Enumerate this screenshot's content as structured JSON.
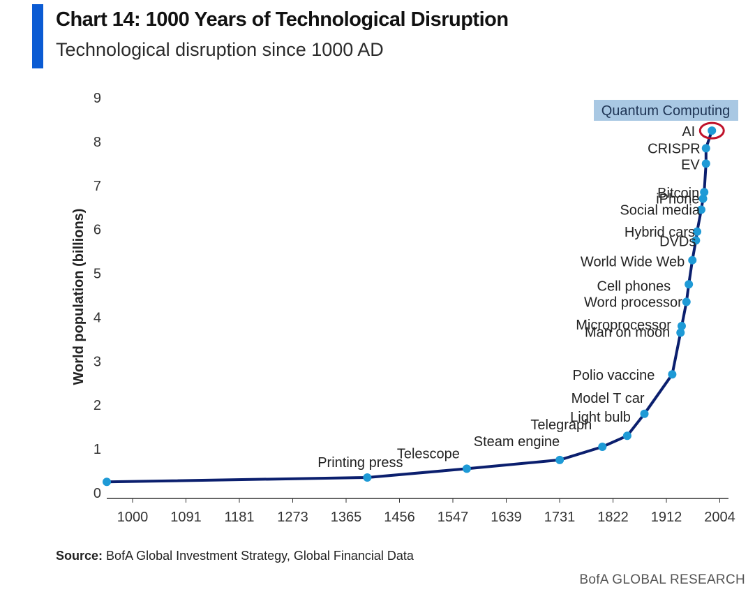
{
  "header": {
    "title": "Chart 14: 1000 Years of Technological Disruption",
    "subtitle": "Technological disruption since 1000 AD"
  },
  "footer": {
    "source_label": "Source:",
    "source_text": "BofA Global Investment Strategy, Global Financial Data",
    "brand": "BofA GLOBAL RESEARCH"
  },
  "colors": {
    "accent_bar": "#0b5bd3",
    "line": "#0b1f6e",
    "point": "#1e9ad6",
    "highlight_box": "#a9c8e3",
    "highlight_ring": "#c0122a"
  },
  "chart_data": {
    "type": "line",
    "title": "Chart 14: 1000 Years of Technological Disruption",
    "subtitle": "Technological disruption since 1000 AD",
    "xlabel": "",
    "ylabel": "World population (billions)",
    "xlim": [
      1000,
      2050
    ],
    "ylim": [
      0,
      9
    ],
    "x_ticks": [
      "1000",
      "1091",
      "1181",
      "1273",
      "1365",
      "1456",
      "1547",
      "1639",
      "1731",
      "1822",
      "1912",
      "2004"
    ],
    "y_ticks": [
      "0",
      "1",
      "2",
      "3",
      "4",
      "5",
      "6",
      "7",
      "8",
      "9"
    ],
    "grid": false,
    "legend": "none",
    "series": [
      {
        "points": [
          {
            "x": 1000,
            "y": 0.25,
            "label": ""
          },
          {
            "x": 1440,
            "y": 0.35,
            "label": "Printing press"
          },
          {
            "x": 1608,
            "y": 0.55,
            "label": "Telescope"
          },
          {
            "x": 1765,
            "y": 0.75,
            "label": "Steam engine"
          },
          {
            "x": 1837,
            "y": 1.05,
            "label": "Telegraph"
          },
          {
            "x": 1879,
            "y": 1.3,
            "label": "Light bulb"
          },
          {
            "x": 1908,
            "y": 1.8,
            "label": "Model T car"
          },
          {
            "x": 1955,
            "y": 2.7,
            "label": "Polio vaccine"
          },
          {
            "x": 1969,
            "y": 3.65,
            "label": "Man on moon"
          },
          {
            "x": 1971,
            "y": 3.8,
            "label": "Microprocessor"
          },
          {
            "x": 1979,
            "y": 4.35,
            "label": "Word processor"
          },
          {
            "x": 1983,
            "y": 4.75,
            "label": "Cell phones"
          },
          {
            "x": 1989,
            "y": 5.3,
            "label": "World Wide Web"
          },
          {
            "x": 1995,
            "y": 5.75,
            "label": "DVDs"
          },
          {
            "x": 1997,
            "y": 5.95,
            "label": "Hybrid cars"
          },
          {
            "x": 2004,
            "y": 6.45,
            "label": "Social media"
          },
          {
            "x": 2007,
            "y": 6.7,
            "label": "iPhone"
          },
          {
            "x": 2009,
            "y": 6.85,
            "label": "Bitcoin"
          },
          {
            "x": 2012,
            "y": 7.5,
            "label": "EV"
          },
          {
            "x": 2012,
            "y": 7.85,
            "label": "CRISPR"
          },
          {
            "x": 2022,
            "y": 8.25,
            "label": "AI"
          }
        ]
      }
    ],
    "annotations": [
      {
        "text": "Quantum Computing",
        "highlight": true
      }
    ]
  }
}
